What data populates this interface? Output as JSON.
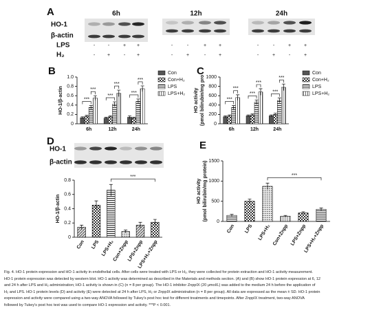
{
  "blots_a": {
    "label": "A",
    "times": [
      "6h",
      "12h",
      "24h"
    ],
    "rows": [
      "HO-1",
      "β-actin"
    ],
    "treatments": [
      {
        "name": "LPS",
        "signs": [
          "-",
          "-",
          "+",
          "+"
        ]
      },
      {
        "name": "H₂",
        "signs": [
          "-",
          "+",
          "-",
          "+"
        ]
      }
    ]
  },
  "blot_d": {
    "rows": [
      "HO-1",
      "β-actin"
    ]
  },
  "chart_data": [
    {
      "type": "grouped_bar",
      "label": "B",
      "ylabel": [
        "HO-1/β-actin"
      ],
      "categories": [
        "6h",
        "12h",
        "24h"
      ],
      "series": [
        {
          "name": "Con",
          "pattern": "solid",
          "values": [
            0.13,
            0.12,
            0.14
          ],
          "errors": [
            0.02,
            0.02,
            0.03
          ]
        },
        {
          "name": "Con+H₂",
          "pattern": "checker",
          "values": [
            0.16,
            0.15,
            0.12
          ],
          "errors": [
            0.02,
            0.02,
            0.02
          ]
        },
        {
          "name": "LPS",
          "pattern": "hstripe",
          "values": [
            0.35,
            0.42,
            0.48
          ],
          "errors": [
            0.04,
            0.05,
            0.05
          ]
        },
        {
          "name": "LPS+H₂",
          "pattern": "vstripe",
          "values": [
            0.55,
            0.65,
            0.75
          ],
          "errors": [
            0.05,
            0.07,
            0.06
          ]
        }
      ],
      "ylim": [
        0,
        1.0
      ],
      "yticks": [
        0,
        0.2,
        0.4,
        0.6,
        0.8,
        {
          "value": 1.0,
          "label": "1.0"
        }
      ],
      "significance": "***"
    },
    {
      "type": "grouped_bar",
      "label": "C",
      "ylabel": [
        "HO activity",
        "(pmol bilirubin/mg pro"
      ],
      "categories": [
        "6h",
        "12h",
        "24h"
      ],
      "series": [
        {
          "name": "Con",
          "pattern": "solid",
          "values": [
            150,
            170,
            170
          ],
          "errors": [
            20,
            20,
            20
          ]
        },
        {
          "name": "Con+H₂",
          "pattern": "checker",
          "values": [
            170,
            190,
            200
          ],
          "errors": [
            20,
            20,
            25
          ]
        },
        {
          "name": "LPS",
          "pattern": "hstripe",
          "values": [
            350,
            460,
            500
          ],
          "errors": [
            40,
            50,
            50
          ]
        },
        {
          "name": "LPS+H₂",
          "pattern": "vstripe",
          "values": [
            560,
            680,
            780
          ],
          "errors": [
            60,
            70,
            70
          ]
        }
      ],
      "ylim": [
        0,
        1000
      ],
      "yticks": [
        0,
        200,
        400,
        600,
        800,
        1000
      ],
      "significance": "***"
    },
    {
      "type": "bar",
      "label": "D",
      "ylabel": [
        "HO-1/β-actin"
      ],
      "categories": [
        "Con",
        "LPS",
        "LPS+H₂",
        "Con+Znpp",
        "LPS+Znpp",
        "LPS+H₂+Znpp"
      ],
      "values": [
        0.14,
        0.45,
        0.66,
        0.08,
        0.17,
        0.21
      ],
      "errors": [
        0.03,
        0.06,
        0.08,
        0.02,
        0.04,
        0.04
      ],
      "patterns": [
        "diag",
        "checker",
        "hstripe",
        "dots",
        "diag",
        "checker"
      ],
      "ylim": [
        0,
        0.8
      ],
      "yticks": [
        0,
        0.2,
        0.4,
        0.6,
        0.8
      ],
      "significance": "***"
    },
    {
      "type": "bar",
      "label": "E",
      "ylabel": [
        "HO activity",
        "(pmol bilirubin/mg protein)"
      ],
      "categories": [
        "Con",
        "LPS",
        "LPS+H₂",
        "Con+Znpp",
        "LPS+Znpp",
        "LPS+H₂+Znpp"
      ],
      "values": [
        150,
        500,
        870,
        130,
        210,
        300
      ],
      "errors": [
        25,
        55,
        80,
        20,
        30,
        35
      ],
      "patterns": [
        "hstripe",
        "checker",
        "dots",
        "vstripe",
        "checker",
        "hstripe"
      ],
      "ylim": [
        0,
        1500
      ],
      "yticks": [
        0,
        500,
        1000,
        1500
      ],
      "significance": "***"
    }
  ],
  "caption": [
    "Fig. 4. HO-1 protein expression and HO-1 activity in endothelial cells. After cells were treated with LPS or H₂, they were collected for protein extraction and HO-1 activity measurement.",
    "HO-1 protein expression was detected by western blot. HO-1 activity was determined as described in the Materials and methods section. (A) and (B) show HO-1 protein expression at 6, 12",
    "and 24 h after LPS and H₂ administration; HO-1 activity is shown in (C) (n = 8 per group). The HO-1 inhibitor ZnppIX (20 μmol/L) was added to the medium 24 h before the application of",
    "H₂ and LPS. HO-1 protein levels (D) and activity (E) were detected at 24 h after LPS, H₂ or ZnppIX administration (n = 8 per group). All data are expressed as the mean ± SD. HO-1 protein",
    "expression and activity were compared using a two-way ANOVA followed by Tukey's post hoc test for different treatments and timepoints. After ZnppIX treatment, two-way ANOVA",
    "followed by Tukey's post hoc test was used to compare HO-1 expression and activity. ***P < 0.001."
  ]
}
